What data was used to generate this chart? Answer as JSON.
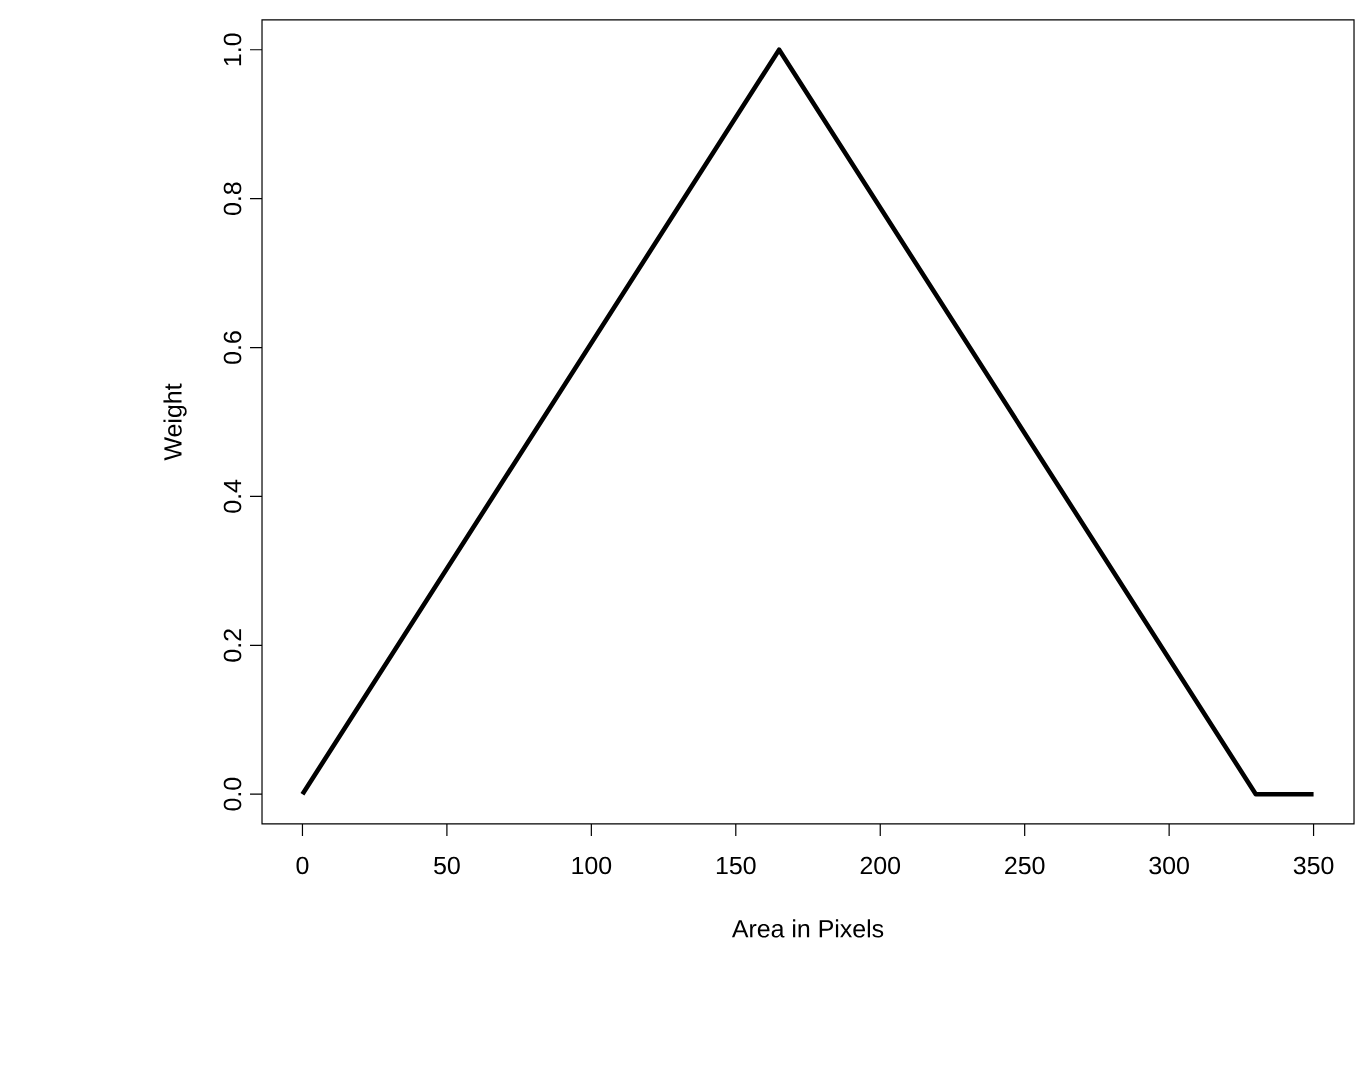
{
  "chart_data": {
    "type": "line",
    "xlabel": "Area in Pixels",
    "ylabel": "Weight",
    "x": [
      0,
      165,
      330,
      350
    ],
    "values": [
      0,
      1,
      0,
      0
    ],
    "color": "#000000",
    "xlim": [
      -14,
      364
    ],
    "ylim": [
      -0.04,
      1.04
    ],
    "xticks": [
      0,
      50,
      100,
      150,
      200,
      250,
      300,
      350
    ],
    "yticks": [
      {
        "value": 0,
        "label": "0.0"
      },
      {
        "value": 0.2,
        "label": "0.2"
      },
      {
        "value": 0.4,
        "label": "0.4"
      },
      {
        "value": 0.6,
        "label": "0.6"
      },
      {
        "value": 0.8,
        "label": "0.8"
      },
      {
        "value": 1,
        "label": "1.0"
      }
    ]
  }
}
